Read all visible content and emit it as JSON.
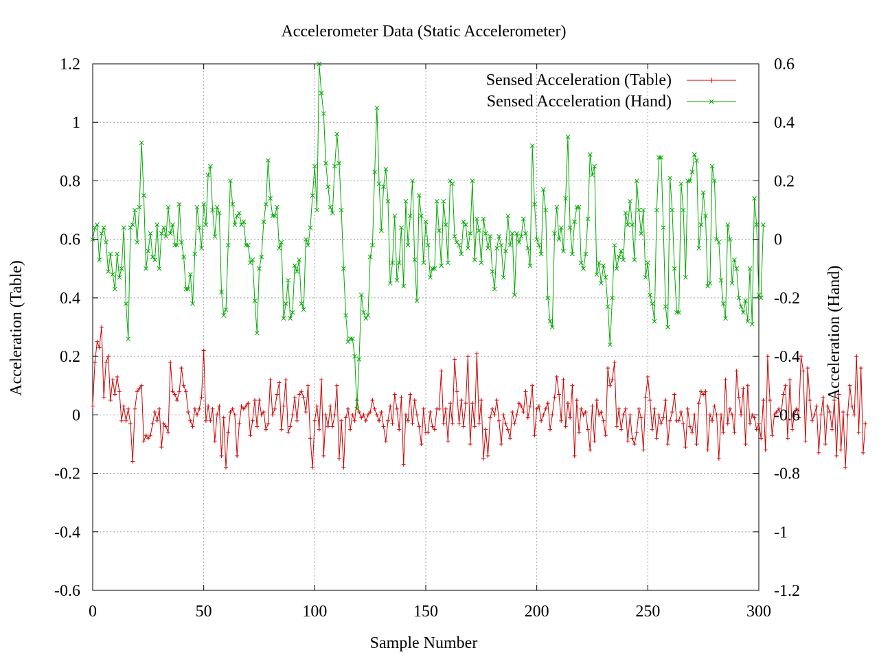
{
  "chart_data": {
    "type": "line",
    "title": "Accelerometer Data (Static Accelerometer)",
    "xlabel": "Sample Number",
    "ylabel": "Acceleration (Table)",
    "y2label": "Acceleration (Hand)",
    "xlim": [
      0,
      300
    ],
    "ylim": [
      -0.6,
      1.2
    ],
    "y2lim": [
      -1.2,
      0.6
    ],
    "xticks": [
      "0",
      "50",
      "100",
      "150",
      "200",
      "250",
      "300"
    ],
    "yticks": [
      "-0.6",
      "-0.4",
      "-0.2",
      "0",
      "0.2",
      "0.4",
      "0.6",
      "0.8",
      "1",
      "1.2"
    ],
    "y2ticks": [
      "-1.2",
      "-1",
      "-0.8",
      "-0.6",
      "-0.4",
      "-0.2",
      "0",
      "0.2",
      "0.4",
      "0.6"
    ],
    "grid": true,
    "legend_position": "top-right",
    "series": [
      {
        "name": "Sensed Acceleration (Table)",
        "axis": "left",
        "color": "#cc0000",
        "marker": "plus",
        "x_start": 0,
        "x_step": 1,
        "values": [
          0.03,
          0.18,
          0.25,
          0.23,
          0.3,
          0.06,
          0.18,
          0.2,
          0.05,
          0.12,
          0.07,
          0.13,
          0.08,
          -0.02,
          0.03,
          -0.02,
          0.02,
          -0.03,
          -0.16,
          0.02,
          0.08,
          0.09,
          0.1,
          -0.09,
          -0.07,
          -0.08,
          -0.07,
          -0.03,
          0.01,
          -0.02,
          0.02,
          -0.11,
          -0.03,
          -0.04,
          -0.06,
          0.18,
          0.08,
          0.07,
          0.05,
          0.08,
          0.16,
          0.1,
          0.08,
          0.01,
          -0.02,
          -0.04,
          0.02,
          0.0,
          0.02,
          0.06,
          0.22,
          -0.02,
          0.03,
          -0.02,
          0.02,
          -0.09,
          0.0,
          0.03,
          -0.14,
          -0.01,
          -0.18,
          -0.06,
          0.01,
          0.02,
          0.0,
          -0.14,
          -0.03,
          0.03,
          0.02,
          0.03,
          0.04,
          -0.07,
          -0.02,
          0.05,
          -0.04,
          0.05,
          0.0,
          0.01,
          -0.05,
          -0.03,
          0.12,
          0.0,
          0.02,
          0.07,
          0.11,
          -0.05,
          0.03,
          0.12,
          -0.06,
          -0.04,
          0.0,
          0.06,
          -0.02,
          0.07,
          0.08,
          0.06,
          0.01,
          0.1,
          -0.08,
          -0.18,
          -0.02,
          0.03,
          -0.05,
          0.12,
          -0.14,
          0.0,
          -0.04,
          0.03,
          -0.04,
          0.0,
          0.1,
          -0.15,
          -0.02,
          -0.18,
          -0.01,
          0.02,
          -0.05,
          0.0,
          -0.02,
          0.05,
          0.01,
          -0.01,
          0.0,
          -0.02,
          0.0,
          0.01,
          0.05,
          0.02,
          0.0,
          -0.02,
          0.01,
          -0.04,
          -0.09,
          -0.02,
          0.03,
          -0.03,
          0.07,
          0.02,
          -0.05,
          0.06,
          -0.17,
          0.0,
          -0.02,
          0.07,
          -0.03,
          0.05,
          0.0,
          -0.04,
          -0.1,
          0.02,
          -0.06,
          -0.06,
          0.01,
          -0.04,
          -0.05,
          0.02,
          0.02,
          0.15,
          -0.03,
          0.02,
          -0.09,
          0.04,
          -0.03,
          0.19,
          0.08,
          -0.03,
          0.05,
          -0.04,
          0.04,
          0.2,
          -0.1,
          0.04,
          -0.04,
          0.21,
          -0.03,
          0.05,
          -0.15,
          -0.05,
          -0.14,
          -0.01,
          0.02,
          0.0,
          0.05,
          -0.02,
          -0.1,
          0.0,
          -0.03,
          -0.05,
          -0.08,
          0.01,
          -0.03,
          0.0,
          0.04,
          0.03,
          0.01,
          0.08,
          -0.01,
          0.03,
          0.1,
          -0.07,
          0.02,
          0.03,
          -0.02,
          0.0,
          0.02,
          0.04,
          -0.05,
          0.0,
          0.06,
          0.13,
          0.07,
          -0.02,
          0.12,
          -0.04,
          0.04,
          -0.01,
          0.1,
          -0.14,
          0.05,
          -0.06,
          0.02,
          0.0,
          0.01,
          -0.05,
          -0.12,
          0.03,
          -0.09,
          0.05,
          0.0,
          0.01,
          -0.02,
          -0.07,
          0.16,
          0.1,
          0.12,
          0.18,
          -0.04,
          0.02,
          -0.05,
          0.0,
          0.02,
          -0.09,
          0.0,
          -0.08,
          -0.1,
          -0.06,
          0.02,
          -0.01,
          -0.12,
          0.06,
          0.13,
          0.05,
          -0.05,
          0.02,
          -0.08,
          0.0,
          -0.03,
          -0.01,
          0.05,
          -0.1,
          -0.02,
          0.01,
          0.07,
          -0.02,
          -0.02,
          0.01,
          -0.03,
          -0.11,
          0.02,
          -0.04,
          -0.06,
          0.0,
          -0.1,
          0.04,
          0.08,
          0.07,
          0.08,
          -0.12,
          0.0,
          -0.02,
          0.03,
          0.0,
          -0.15,
          0.0,
          -0.06,
          0.12,
          -0.03,
          0.02,
          0.0,
          -0.06,
          0.15,
          0.06,
          0.0,
          0.09,
          -0.1,
          0.1,
          -0.03,
          0.0,
          -0.01,
          -0.05,
          -0.03,
          -0.08,
          0.05,
          -0.12,
          0.2,
          0.05,
          -0.07,
          0.0,
          0.01,
          0.02,
          0.0,
          0.07,
          0.1,
          -0.08,
          0.12,
          -0.05,
          0.0,
          0.02,
          -0.01,
          0.2,
          0.15,
          -0.09,
          0.16,
          0.05,
          -0.02,
          0.0,
          0.03,
          -0.13,
          0.0,
          0.06,
          -0.1,
          0.03,
          0.01,
          -0.05,
          0.05,
          -0.14,
          0.07,
          -0.12,
          0.01,
          -0.18,
          0.0,
          0.1,
          0.03,
          0.0,
          0.2,
          -0.06,
          0.16,
          -0.13,
          -0.03
        ]
      },
      {
        "name": "Sensed Acceleration (Hand)",
        "axis": "right",
        "color": "#00aa00",
        "marker": "x",
        "x_start": 0,
        "x_step": 1,
        "values": [
          0.0,
          0.04,
          0.05,
          -0.07,
          0.02,
          0.04,
          -0.01,
          -0.11,
          -0.05,
          -0.12,
          -0.17,
          -0.05,
          -0.13,
          -0.1,
          0.04,
          -0.22,
          -0.34,
          0.04,
          0.05,
          0.1,
          -0.01,
          0.11,
          0.33,
          0.15,
          -0.1,
          -0.04,
          0.02,
          -0.06,
          -0.07,
          0.05,
          -0.1,
          0.02,
          0.04,
          0.01,
          0.11,
          0.02,
          0.05,
          -0.02,
          -0.02,
          0.12,
          -0.01,
          -0.06,
          -0.17,
          -0.17,
          -0.12,
          -0.22,
          -0.05,
          0.11,
          0.04,
          -0.03,
          0.12,
          0.05,
          0.22,
          0.25,
          0.1,
          0.01,
          0.11,
          0.09,
          -0.18,
          -0.26,
          -0.24,
          -0.02,
          0.2,
          0.12,
          0.05,
          0.08,
          0.09,
          0.05,
          0.06,
          -0.02,
          -0.02,
          -0.08,
          -0.07,
          -0.21,
          -0.32,
          -0.1,
          -0.06,
          0.06,
          0.12,
          0.27,
          0.14,
          0.08,
          0.08,
          0.11,
          -0.03,
          -0.01,
          -0.27,
          -0.22,
          -0.14,
          -0.27,
          -0.25,
          -0.09,
          -0.11,
          -0.07,
          -0.22,
          -0.24,
          0.0,
          -0.02,
          0.04,
          0.15,
          0.25,
          0.1,
          0.6,
          0.5,
          0.43,
          0.26,
          0.18,
          0.11,
          0.09,
          0.25,
          0.36,
          0.26,
          0.1,
          -0.1,
          -0.26,
          -0.35,
          -0.34,
          -0.34,
          -0.4,
          -0.58,
          -0.41,
          -0.19,
          -0.25,
          -0.27,
          -0.26,
          -0.06,
          -0.02,
          0.23,
          0.45,
          0.19,
          0.03,
          0.18,
          0.24,
          0.13,
          -0.15,
          -0.08,
          0.08,
          -0.14,
          -0.08,
          0.04,
          -0.16,
          0.13,
          -0.02,
          0.08,
          0.2,
          -0.07,
          -0.21,
          0.15,
          0.08,
          -0.08,
          0.06,
          -0.02,
          -0.13,
          -0.1,
          -0.1,
          0.13,
          0.03,
          -0.09,
          0.13,
          0.05,
          -0.08,
          0.2,
          0.19,
          0.01,
          -0.01,
          -0.02,
          -0.05,
          0.06,
          0.05,
          -0.03,
          0.02,
          0.2,
          -0.07,
          0.07,
          0.03,
          -0.08,
          0.07,
          0.02,
          -0.03,
          0.01,
          -0.11,
          -0.17,
          -0.03,
          0.01,
          -0.02,
          -0.13,
          -0.04,
          0.08,
          -0.02,
          0.02,
          -0.19,
          0.02,
          -0.01,
          0.01,
          0.07,
          0.02,
          -0.03,
          -0.09,
          0.32,
          0.12,
          0.0,
          -0.02,
          -0.05,
          0.17,
          0.1,
          -0.2,
          -0.28,
          -0.3,
          0.02,
          0.11,
          0.0,
          0.04,
          -0.04,
          0.14,
          0.35,
          0.04,
          -0.05,
          0.06,
          0.11,
          0.11,
          -0.08,
          -0.1,
          -0.05,
          0.07,
          0.29,
          0.22,
          0.25,
          -0.12,
          -0.08,
          -0.15,
          -0.09,
          -0.13,
          -0.23,
          -0.36,
          -0.2,
          -0.02,
          -0.1,
          -0.06,
          -0.04,
          -0.07,
          0.09,
          0.05,
          0.13,
          0.05,
          -0.07,
          0.2,
          0.1,
          0.02,
          0.1,
          -0.13,
          -0.08,
          -0.19,
          -0.22,
          -0.28,
          0.1,
          0.28,
          0.28,
          0.04,
          -0.23,
          -0.3,
          0.21,
          0.1,
          -0.1,
          -0.25,
          -0.25,
          0.19,
          0.1,
          -0.13,
          0.2,
          0.2,
          0.23,
          0.29,
          0.27,
          -0.03,
          0.05,
          0.16,
          0.08,
          -0.16,
          -0.15,
          0.25,
          0.2,
          0.0,
          -0.01,
          -0.14,
          -0.22,
          -0.27,
          0.05,
          0.0,
          -0.15,
          -0.07,
          -0.1,
          -0.2,
          -0.23,
          -0.25,
          -0.21,
          -0.28,
          -0.1,
          -0.29,
          0.14,
          0.05,
          -0.19,
          -0.2,
          0.05
        ]
      }
    ]
  }
}
